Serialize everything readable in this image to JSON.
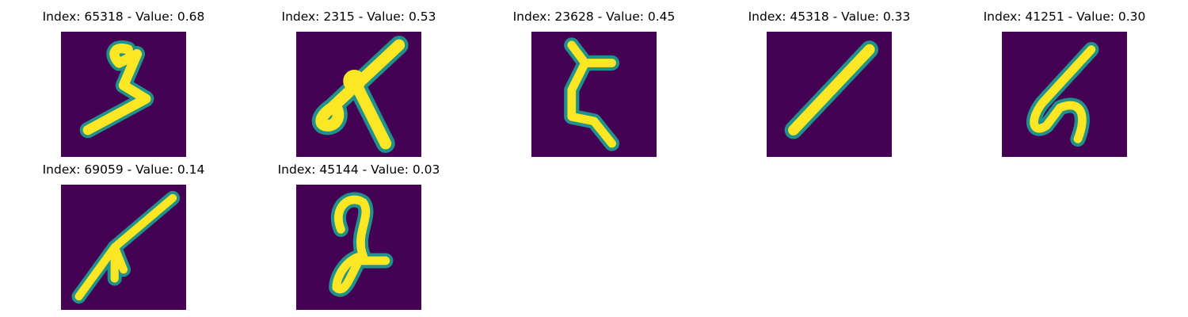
{
  "panels": [
    {
      "title": "Index: 65318 - Value: 0.68",
      "digit": "stroke-65318"
    },
    {
      "title": "Index: 2315 - Value: 0.53",
      "digit": "stroke-2315"
    },
    {
      "title": "Index: 23628 - Value: 0.45",
      "digit": "stroke-23628"
    },
    {
      "title": "Index: 45318 - Value: 0.33",
      "digit": "stroke-45318"
    },
    {
      "title": "Index: 41251 - Value: 0.30",
      "digit": "stroke-41251"
    },
    {
      "title": "Index: 69059 - Value: 0.14",
      "digit": "stroke-69059"
    },
    {
      "title": "Index: 45144 - Value: 0.03",
      "digit": "stroke-45144"
    }
  ],
  "colors": {
    "background": "#440154",
    "edge": "#21918c",
    "stroke": "#fde725"
  }
}
